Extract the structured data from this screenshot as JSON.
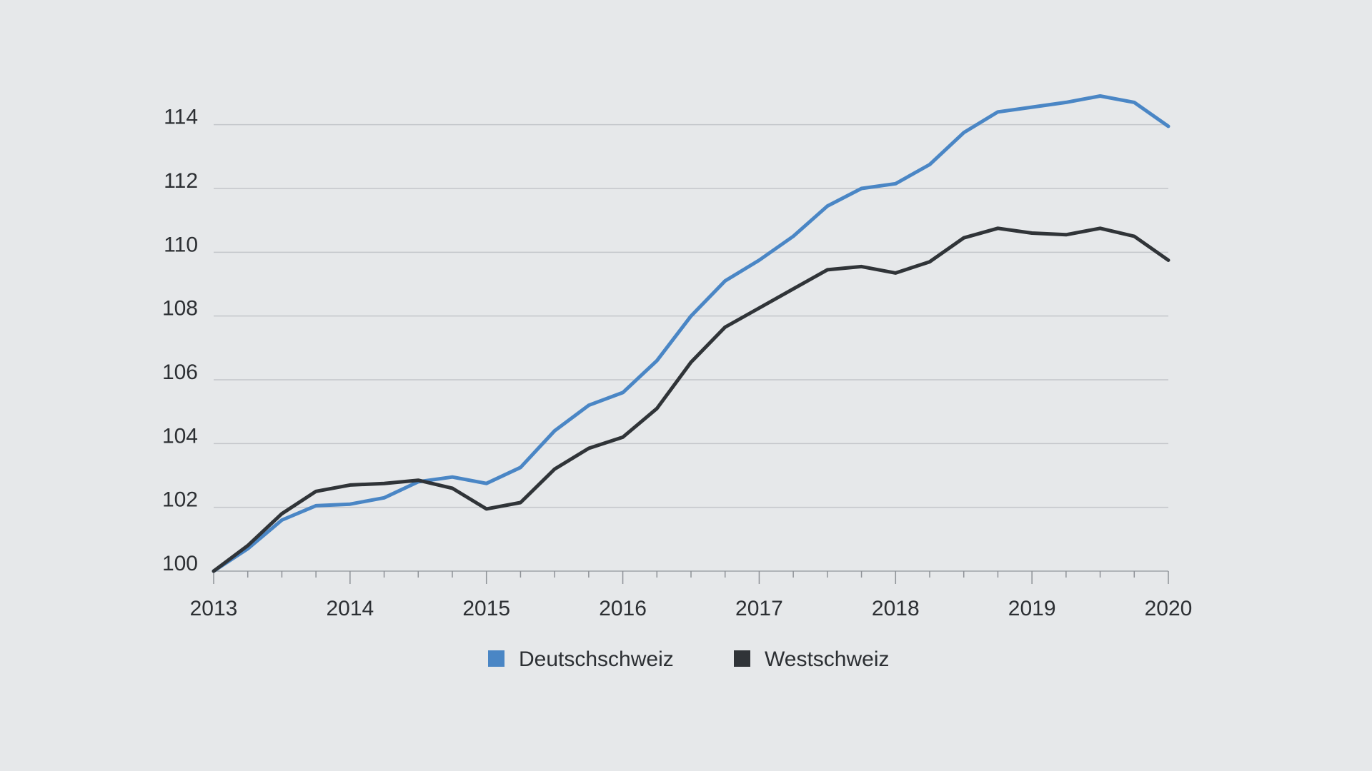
{
  "chart_data": {
    "type": "line",
    "title": "",
    "xlabel": "",
    "ylabel": "",
    "ylim": [
      100,
      115
    ],
    "xlim": [
      2013,
      2020
    ],
    "x_ticks": [
      "2013",
      "2014",
      "2015",
      "2016",
      "2017",
      "2018",
      "2019",
      "2020"
    ],
    "y_ticks": [
      "100",
      "102",
      "104",
      "106",
      "108",
      "110",
      "112",
      "114"
    ],
    "grid": "horizontal",
    "legend_position": "bottom-center",
    "x": [
      "2013 Q1",
      "2013 Q2",
      "2013 Q3",
      "2013 Q4",
      "2014 Q1",
      "2014 Q2",
      "2014 Q3",
      "2014 Q4",
      "2015 Q1",
      "2015 Q2",
      "2015 Q3",
      "2015 Q4",
      "2016 Q1",
      "2016 Q2",
      "2016 Q3",
      "2016 Q4",
      "2017 Q1",
      "2017 Q2",
      "2017 Q3",
      "2017 Q4",
      "2018 Q1",
      "2018 Q2",
      "2018 Q3",
      "2018 Q4",
      "2019 Q1",
      "2019 Q2",
      "2019 Q3",
      "2019 Q4",
      "2020 Q1"
    ],
    "series": [
      {
        "name": "Deutschschweiz",
        "color": "#4a86c5",
        "values": [
          100.0,
          100.7,
          101.6,
          102.05,
          102.1,
          102.3,
          102.8,
          102.95,
          102.75,
          103.25,
          104.4,
          105.2,
          105.6,
          106.6,
          108.0,
          109.1,
          109.75,
          110.5,
          111.45,
          112.0,
          112.15,
          112.75,
          113.75,
          114.4,
          114.55,
          114.7,
          114.9,
          114.7,
          113.95
        ]
      },
      {
        "name": "Westschweiz",
        "color": "#303438",
        "values": [
          100.0,
          100.8,
          101.8,
          102.5,
          102.7,
          102.75,
          102.85,
          102.6,
          101.95,
          102.15,
          103.2,
          103.85,
          104.2,
          105.1,
          106.55,
          107.65,
          108.25,
          108.85,
          109.45,
          109.55,
          109.35,
          109.7,
          110.45,
          110.75,
          110.6,
          110.55,
          110.75,
          110.5,
          109.75
        ]
      }
    ]
  }
}
